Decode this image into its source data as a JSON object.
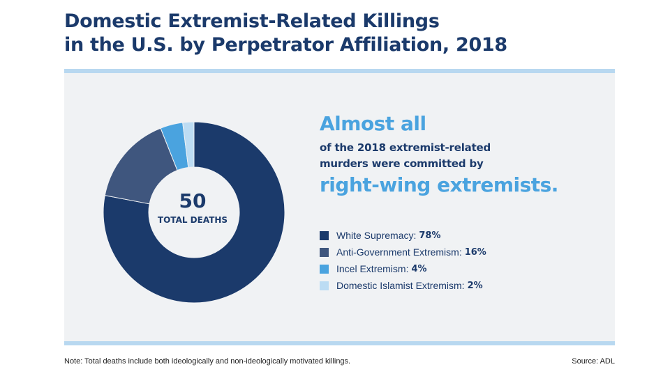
{
  "title": {
    "line1": "Domestic Extremist-Related Killings",
    "line2": "in the U.S. by Perpetrator Affiliation, 2018"
  },
  "center": {
    "value": "50",
    "label": "TOTAL DEATHS"
  },
  "callout": {
    "headline": "Almost all",
    "line1": "of the 2018 extremist-related",
    "line2": "murders were committed by",
    "emphasis": "right-wing extremists."
  },
  "footer": {
    "note": "Note: Total deaths include both ideologically and non-ideologically motivated killings.",
    "source": "Source: ADL"
  },
  "chart_data": {
    "type": "pie",
    "donut": true,
    "total": 50,
    "title": "Domestic Extremist-Related Killings in the U.S. by Perpetrator Affiliation, 2018",
    "unit": "%",
    "legend_position": "right",
    "slices": [
      {
        "name": "White Supremacy",
        "value": 78,
        "display": "78%",
        "color": "#1b3a6b"
      },
      {
        "name": "Anti-Government Extremism",
        "value": 16,
        "display": "16%",
        "color": "#3f567e"
      },
      {
        "name": "Incel Extremism",
        "value": 4,
        "display": "4%",
        "color": "#4aa3df"
      },
      {
        "name": "Domestic Islamist Extremism",
        "value": 2,
        "display": "2%",
        "color": "#bcdcf3"
      }
    ]
  }
}
